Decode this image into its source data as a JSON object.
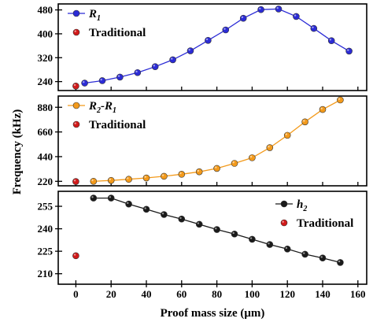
{
  "chart_data": [
    {
      "type": "line",
      "panel": "top",
      "ylim": [
        210,
        500
      ],
      "yticks": [
        "240",
        "320",
        "400",
        "480"
      ],
      "series": [
        {
          "name": "R1",
          "name_main": "R",
          "name_sub": "1",
          "color": "#2b2bd6",
          "marker": "circle",
          "x": [
            5,
            15,
            25,
            35,
            45,
            55,
            65,
            75,
            85,
            95,
            105,
            115,
            125,
            135,
            145,
            155
          ],
          "y": [
            235,
            243,
            255,
            270,
            290,
            313,
            343,
            378,
            413,
            452,
            481,
            483,
            458,
            418,
            377,
            342
          ]
        },
        {
          "name": "Traditional",
          "color": "#d11a1a",
          "marker": "circle",
          "x": [
            0
          ],
          "y": [
            225
          ]
        }
      ],
      "legend": [
        "R1",
        "Traditional"
      ],
      "legend_position": "top-left"
    },
    {
      "type": "line",
      "panel": "middle",
      "ylim": [
        180,
        980
      ],
      "yticks": [
        "220",
        "440",
        "660",
        "880"
      ],
      "series": [
        {
          "name": "R2-R1",
          "name_parts": [
            "R",
            "2",
            "-R",
            "1"
          ],
          "color": "#f39a1b",
          "marker": "circle",
          "x": [
            10,
            20,
            30,
            40,
            50,
            60,
            70,
            80,
            90,
            100,
            110,
            120,
            130,
            140,
            150
          ],
          "y": [
            220,
            228,
            238,
            250,
            265,
            283,
            305,
            335,
            380,
            430,
            520,
            630,
            750,
            860,
            945
          ]
        },
        {
          "name": "Traditional",
          "color": "#d11a1a",
          "marker": "circle",
          "x": [
            0
          ],
          "y": [
            218
          ]
        }
      ],
      "legend": [
        "R2-R1",
        "Traditional"
      ],
      "legend_position": "top-left"
    },
    {
      "type": "line",
      "panel": "bottom",
      "ylim": [
        203,
        265
      ],
      "yticks": [
        "210",
        "225",
        "240",
        "255"
      ],
      "series": [
        {
          "name": "h2",
          "name_main": "h",
          "name_sub": "2",
          "color": "#1a1a1a",
          "marker": "circle",
          "x": [
            10,
            20,
            30,
            40,
            50,
            60,
            70,
            80,
            90,
            100,
            110,
            120,
            130,
            140,
            150
          ],
          "y": [
            260.5,
            260.5,
            256.5,
            253,
            249.5,
            246.5,
            243,
            239.5,
            236.5,
            233,
            229.5,
            226.5,
            223,
            220.5,
            217.5
          ]
        },
        {
          "name": "Traditional",
          "color": "#d11a1a",
          "marker": "circle",
          "x": [
            0
          ],
          "y": [
            222
          ]
        }
      ],
      "legend": [
        "h2",
        "Traditional"
      ],
      "legend_position": "top-right"
    }
  ],
  "x_axis": {
    "xlim": [
      -10,
      165
    ],
    "ticks": [
      "0",
      "20",
      "40",
      "60",
      "80",
      "100",
      "120",
      "140",
      "160"
    ],
    "label": "Proof mass size (μm)"
  },
  "y_axis": {
    "label": "Frequency (kHz)"
  },
  "legend_labels": {
    "traditional": "Traditional"
  }
}
